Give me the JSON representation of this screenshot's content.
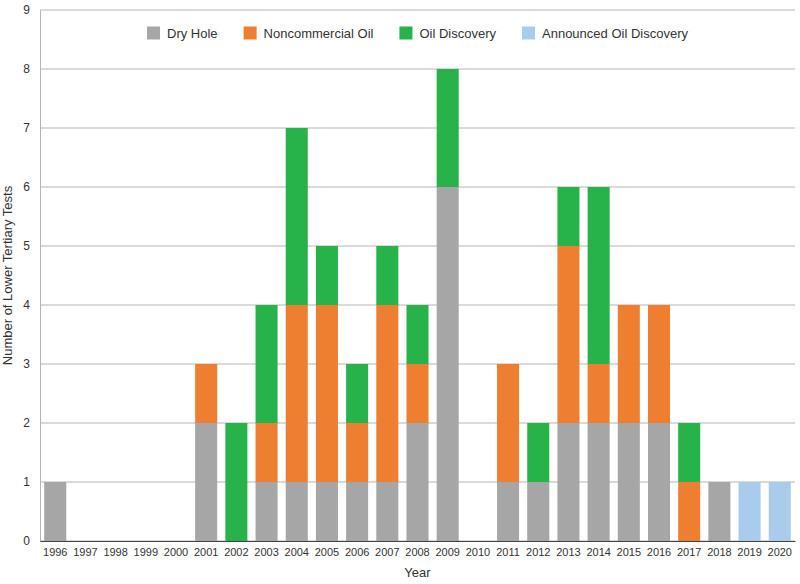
{
  "chart_data": {
    "type": "bar",
    "stacked": true,
    "x_label": "Year",
    "y_label": "Number of Lower Tertiary Tests",
    "categories": [
      "1996",
      "1997",
      "1998",
      "1999",
      "2000",
      "2001",
      "2002",
      "2003",
      "2004",
      "2005",
      "2006",
      "2007",
      "2008",
      "2009",
      "2010",
      "2011",
      "2012",
      "2013",
      "2014",
      "2015",
      "2016",
      "2017",
      "2018",
      "2019",
      "2020"
    ],
    "series": [
      {
        "name": "Dry Hole",
        "color": "#a6a6a6",
        "values": [
          1,
          0,
          0,
          0,
          0,
          2,
          0,
          1,
          1,
          1,
          1,
          1,
          2,
          6,
          0,
          1,
          1,
          2,
          2,
          2,
          2,
          0,
          1,
          0,
          0
        ]
      },
      {
        "name": "Noncommercial Oil",
        "color": "#ef7f30",
        "values": [
          0,
          0,
          0,
          0,
          0,
          1,
          0,
          1,
          3,
          3,
          1,
          3,
          1,
          0,
          0,
          2,
          0,
          3,
          1,
          2,
          2,
          1,
          0,
          0,
          0
        ]
      },
      {
        "name": "Oil Discovery",
        "color": "#27b24a",
        "values": [
          0,
          0,
          0,
          0,
          0,
          0,
          2,
          2,
          3,
          1,
          1,
          1,
          1,
          2,
          0,
          0,
          1,
          1,
          3,
          0,
          0,
          1,
          0,
          0,
          0
        ]
      },
      {
        "name": "Announced Oil Discovery",
        "color": "#a9cbec",
        "values": [
          0,
          0,
          0,
          0,
          0,
          0,
          0,
          0,
          0,
          0,
          0,
          0,
          0,
          0,
          0,
          0,
          0,
          0,
          0,
          0,
          0,
          0,
          0,
          1,
          1
        ]
      }
    ],
    "ylim": [
      0,
      9
    ],
    "yticks": [
      0,
      1,
      2,
      3,
      4,
      5,
      6,
      7,
      8,
      9
    ],
    "grid": true,
    "legend": "top"
  }
}
